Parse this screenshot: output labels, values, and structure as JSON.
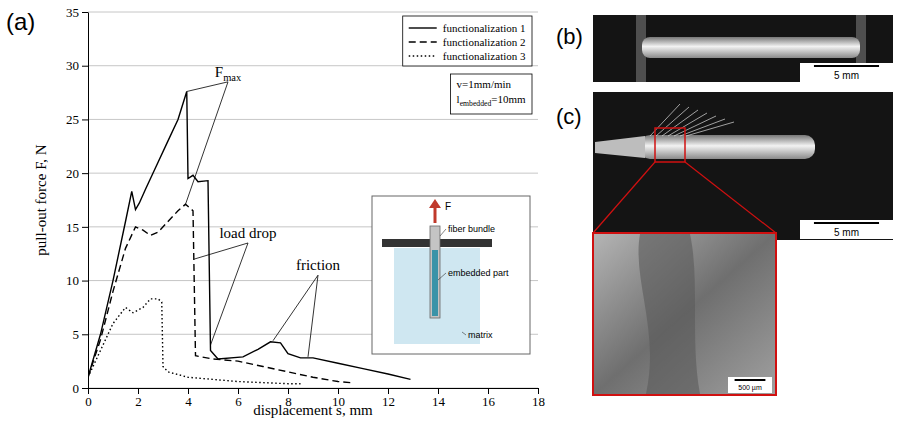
{
  "chart_data": {
    "type": "line",
    "panel_label": "(a)",
    "x_label": "displacement s, mm",
    "y_label": "pull-out force F, N",
    "xlim": [
      0,
      18
    ],
    "xticks": [
      0,
      2,
      4,
      6,
      8,
      10,
      12,
      14,
      16,
      18
    ],
    "ylim": [
      0,
      35
    ],
    "yticks": [
      0,
      5,
      10,
      15,
      20,
      25,
      30,
      35
    ],
    "grid": "y",
    "legend": "upper right",
    "series": [
      {
        "name": "functionalization 1",
        "color": "#000000",
        "line_style": "solid",
        "x": [
          0,
          0.5,
          1,
          1.5,
          1.75,
          1.9,
          2.05,
          2.3,
          2.7,
          3.2,
          3.6,
          3.95,
          4.0,
          4.2,
          4.4,
          4.8,
          4.9,
          5.2,
          6.2,
          6.8,
          7.3,
          7.7,
          8.0,
          8.5,
          9.0,
          10,
          11,
          12,
          12.9
        ],
        "values": [
          1,
          5,
          10,
          15.5,
          18.3,
          16.6,
          17.2,
          18.5,
          20.5,
          23,
          25,
          27.6,
          19.5,
          19.8,
          19.2,
          19.3,
          3.5,
          2.7,
          2.9,
          3.6,
          4.3,
          4.2,
          3.2,
          2.8,
          2.8,
          2.3,
          1.8,
          1.3,
          0.8
        ]
      },
      {
        "name": "functionalization 2",
        "color": "#000000",
        "line_style": "dashed",
        "x": [
          0,
          0.5,
          1,
          1.5,
          1.9,
          2.2,
          2.5,
          2.8,
          3.2,
          3.6,
          3.9,
          4.2,
          4.3,
          5,
          6,
          7,
          8,
          9,
          10,
          10.5
        ],
        "values": [
          1,
          4.5,
          9,
          13,
          15,
          14.7,
          14.2,
          14.5,
          15.5,
          16.5,
          17.1,
          16.5,
          3,
          2.7,
          2.5,
          2,
          1.5,
          1,
          0.6,
          0.5
        ]
      },
      {
        "name": "functionalization 3",
        "color": "#000000",
        "line_style": "dotted",
        "x": [
          0,
          0.5,
          1,
          1.5,
          1.8,
          2.2,
          2.5,
          2.8,
          2.95,
          3.0,
          3.2,
          4,
          5,
          6,
          7,
          8,
          8.5
        ],
        "values": [
          1,
          3.5,
          6,
          7.5,
          7,
          7.5,
          8.3,
          8.3,
          8,
          2,
          1.5,
          1,
          0.8,
          0.6,
          0.5,
          0.4,
          0.4
        ]
      }
    ],
    "conditions": [
      {
        "text": "v=1mm/min"
      },
      {
        "text": "l",
        "sub": "embedded",
        "after": "=10mm"
      }
    ],
    "annotations": [
      {
        "text": "F",
        "sub": "max",
        "x": 5.6,
        "y": 28.5,
        "targets": [
          {
            "x": 3.95,
            "y": 27.6
          },
          {
            "x": 3.9,
            "y": 17.1
          }
        ]
      },
      {
        "text": "load drop",
        "x": 6.4,
        "y": 13.5,
        "targets": [
          {
            "x": 4.25,
            "y": 12
          },
          {
            "x": 4.9,
            "y": 4
          }
        ]
      },
      {
        "text": "friction",
        "x": 9.2,
        "y": 10.5,
        "targets": [
          {
            "x": 7.4,
            "y": 4.4
          },
          {
            "x": 8.8,
            "y": 2.9
          }
        ]
      }
    ],
    "inset": {
      "force": "F",
      "labels": [
        "fiber bundle",
        "embedded part",
        "matrix"
      ]
    }
  },
  "photos": [
    {
      "label": "(b)",
      "scale_bar": "5 mm"
    },
    {
      "label": "(c)",
      "scale_bar": "5 mm",
      "detail_scale_bar": "500 µm"
    }
  ]
}
